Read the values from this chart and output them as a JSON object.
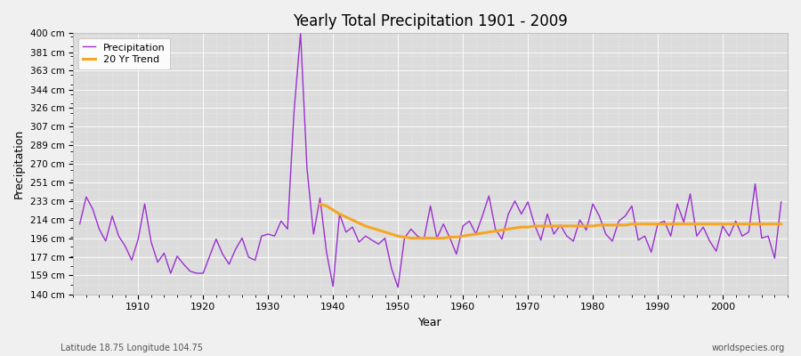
{
  "title": "Yearly Total Precipitation 1901 - 2009",
  "xlabel": "Year",
  "ylabel": "Precipitation",
  "subtitle": "Latitude 18.75 Longitude 104.75",
  "watermark": "worldspecies.org",
  "precip_color": "#9b30d0",
  "trend_color": "#f5a623",
  "background_color": "#f0f0f0",
  "plot_bg_color": "#dcdcdc",
  "legend_labels": [
    "Precipitation",
    "20 Yr Trend"
  ],
  "ylim": [
    140,
    400
  ],
  "yticks": [
    140,
    159,
    177,
    196,
    214,
    233,
    251,
    270,
    289,
    307,
    326,
    344,
    363,
    381,
    400
  ],
  "xlim": [
    1900,
    2010
  ],
  "xticks": [
    1910,
    1920,
    1930,
    1940,
    1950,
    1960,
    1970,
    1980,
    1990,
    2000
  ],
  "years": [
    1901,
    1902,
    1903,
    1904,
    1905,
    1906,
    1907,
    1908,
    1909,
    1910,
    1911,
    1912,
    1913,
    1914,
    1915,
    1916,
    1917,
    1918,
    1919,
    1920,
    1921,
    1922,
    1923,
    1924,
    1925,
    1926,
    1927,
    1928,
    1929,
    1930,
    1931,
    1932,
    1933,
    1934,
    1935,
    1936,
    1937,
    1938,
    1939,
    1940,
    1941,
    1942,
    1943,
    1944,
    1945,
    1946,
    1947,
    1948,
    1949,
    1950,
    1951,
    1952,
    1953,
    1954,
    1955,
    1956,
    1957,
    1958,
    1959,
    1960,
    1961,
    1962,
    1963,
    1964,
    1965,
    1966,
    1967,
    1968,
    1969,
    1970,
    1971,
    1972,
    1973,
    1974,
    1975,
    1976,
    1977,
    1978,
    1979,
    1980,
    1981,
    1982,
    1983,
    1984,
    1985,
    1986,
    1987,
    1988,
    1989,
    1990,
    1991,
    1992,
    1993,
    1994,
    1995,
    1996,
    1997,
    1998,
    1999,
    2000,
    2001,
    2002,
    2003,
    2004,
    2005,
    2006,
    2007,
    2008,
    2009
  ],
  "precipitation": [
    210,
    237,
    225,
    205,
    193,
    218,
    198,
    188,
    174,
    195,
    230,
    192,
    172,
    181,
    161,
    178,
    170,
    163,
    161,
    161,
    178,
    195,
    180,
    170,
    185,
    196,
    177,
    174,
    198,
    200,
    198,
    213,
    205,
    322,
    400,
    265,
    200,
    236,
    182,
    148,
    220,
    202,
    207,
    192,
    198,
    194,
    190,
    196,
    166,
    147,
    196,
    205,
    198,
    195,
    228,
    196,
    210,
    196,
    180,
    208,
    213,
    200,
    218,
    238,
    205,
    195,
    220,
    233,
    220,
    232,
    210,
    194,
    220,
    200,
    209,
    198,
    193,
    214,
    204,
    230,
    218,
    200,
    193,
    213,
    218,
    228,
    194,
    198,
    182,
    210,
    213,
    198,
    230,
    212,
    240,
    198,
    207,
    193,
    183,
    208,
    198,
    213,
    198,
    202,
    250,
    196,
    198,
    176,
    232
  ],
  "trend_years": [
    1938,
    1939,
    1940,
    1941,
    1942,
    1943,
    1944,
    1945,
    1946,
    1947,
    1948,
    1949,
    1950,
    1951,
    1952,
    1953,
    1954,
    1955,
    1956,
    1957,
    1958,
    1959,
    1960,
    1961,
    1962,
    1963,
    1964,
    1965,
    1966,
    1967,
    1968,
    1969,
    1970,
    1971,
    1972,
    1973,
    1974,
    1975,
    1976,
    1977,
    1978,
    1979,
    1980,
    1981,
    1982,
    1983,
    1984,
    1985,
    1986,
    1987,
    1988,
    1989,
    1990,
    1991,
    1992,
    1993,
    1994,
    1995,
    1996,
    1997,
    1998,
    1999,
    2000,
    2001,
    2002,
    2003,
    2004,
    2005,
    2006,
    2007,
    2008,
    2009
  ],
  "trend": [
    230,
    228,
    224,
    220,
    217,
    214,
    211,
    208,
    206,
    204,
    202,
    200,
    198,
    197,
    196,
    196,
    196,
    196,
    196,
    196,
    197,
    197,
    198,
    199,
    200,
    201,
    202,
    203,
    204,
    205,
    206,
    207,
    207,
    208,
    208,
    208,
    208,
    208,
    208,
    208,
    208,
    208,
    208,
    209,
    209,
    209,
    209,
    209,
    210,
    210,
    210,
    210,
    210,
    210,
    210,
    210,
    210,
    210,
    210,
    210,
    210,
    210,
    210,
    210,
    210,
    210,
    210,
    210,
    210,
    210,
    210,
    210
  ]
}
